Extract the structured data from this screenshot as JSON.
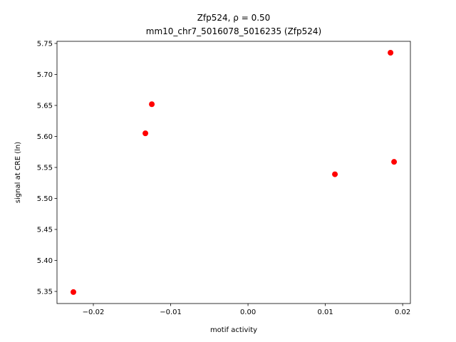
{
  "chart_data": {
    "type": "scatter",
    "title": [
      "Zfp524, ρ = 0.50",
      "mm10_chr7_5016078_5016235 (Zfp524)"
    ],
    "x_label": "motif activity",
    "y_label": "signal at CRE (ln)",
    "series": [
      {
        "color": "#ff0000",
        "x": [
          -0.01244,
          -0.01327,
          0.01843,
          0.01889,
          0.01124,
          -0.02258
        ],
        "values": [
          5.652,
          5.605,
          5.735,
          5.559,
          5.539,
          5.349
        ]
      }
    ],
    "xlim": [
      -0.0247,
      0.021
    ],
    "ylim": [
      5.3305,
      5.7534
    ],
    "xticks": [
      {
        "value": -0.02,
        "label": "−0.02"
      },
      {
        "value": -0.01,
        "label": "−0.01"
      },
      {
        "value": 0,
        "label": "0.00"
      },
      0.01,
      0.02
    ],
    "yticks": [
      5.35,
      {
        "value": 5.4,
        "label": "5.40"
      },
      5.45,
      {
        "value": 5.5,
        "label": "5.50"
      },
      5.55,
      {
        "value": 5.6,
        "label": "5.60"
      },
      5.65,
      {
        "value": 5.7,
        "label": "5.70"
      },
      5.75
    ]
  }
}
